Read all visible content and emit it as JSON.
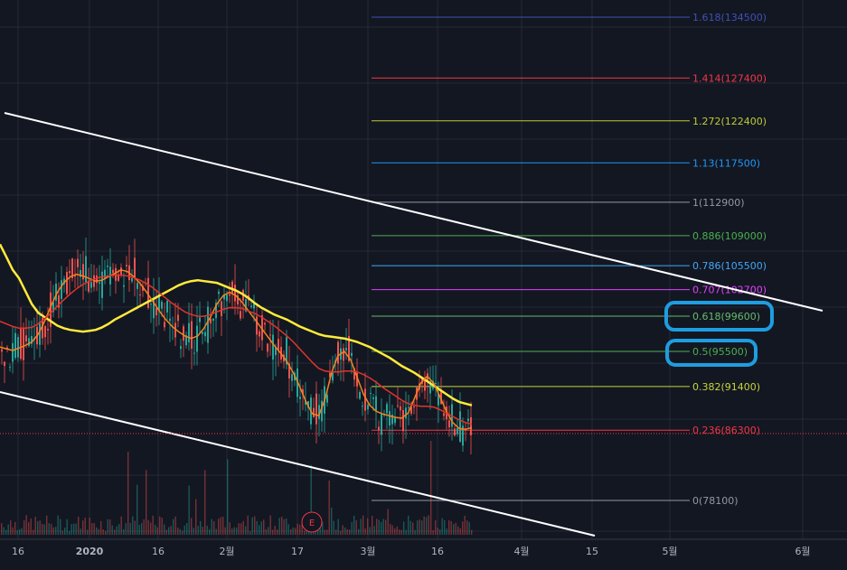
{
  "chart_data": {
    "type": "line",
    "title": "",
    "x_ticks": [
      "16",
      "2020",
      "16",
      "2월",
      "17",
      "3월",
      "16",
      "4월",
      "15",
      "5월",
      "6월"
    ],
    "fib_levels": [
      {
        "ratio": "1.618",
        "price": 134500,
        "label": "1.618(134500)",
        "color": "#3f51b5"
      },
      {
        "ratio": "1.414",
        "price": 127400,
        "label": "1.414(127400)",
        "color": "#f23645"
      },
      {
        "ratio": "1.272",
        "price": 122400,
        "label": "1.272(122400)",
        "color": "#c0ca33"
      },
      {
        "ratio": "1.13",
        "price": 117500,
        "label": "1.13(117500)",
        "color": "#2196f3"
      },
      {
        "ratio": "1",
        "price": 112900,
        "label": "1(112900)",
        "color": "#9598a1"
      },
      {
        "ratio": "0.886",
        "price": 109000,
        "label": "0.886(109000)",
        "color": "#4caf50"
      },
      {
        "ratio": "0.786",
        "price": 105500,
        "label": "0.786(105500)",
        "color": "#42a5f5"
      },
      {
        "ratio": "0.707",
        "price": 102700,
        "label": "0.707(102700)",
        "color": "#e040fb"
      },
      {
        "ratio": "0.618",
        "price": 99600,
        "label": "0.618(99600)",
        "color": "#66bb6a"
      },
      {
        "ratio": "0.5",
        "price": 95500,
        "label": "0.5(95500)",
        "color": "#4caf50"
      },
      {
        "ratio": "0.382",
        "price": 91400,
        "label": "0.382(91400)",
        "color": "#c6d43a"
      },
      {
        "ratio": "0.236",
        "price": 86300,
        "label": "0.236(86300)",
        "color": "#f23645"
      },
      {
        "ratio": "0",
        "price": 78100,
        "label": "0(78100)",
        "color": "#9598a1"
      }
    ],
    "current_price": 85900,
    "moving_averages": [
      {
        "color": "#ffeb3b",
        "values": [
          108000,
          106500,
          105000,
          104000,
          102500,
          101000,
          100000,
          99500,
          99000,
          98500,
          98200,
          98000,
          97900,
          97800,
          97900,
          98000,
          98300,
          98700,
          99200,
          99600,
          100000,
          100400,
          100800,
          101200,
          101600,
          102000,
          102400,
          102800,
          103200,
          103500,
          103700,
          103800,
          103700,
          103600,
          103500,
          103200,
          102900,
          102600,
          102200,
          101700,
          101100,
          100600,
          100200,
          99800,
          99500,
          99200,
          98800,
          98400,
          98100,
          97800,
          97500,
          97300,
          97200,
          97100,
          97000,
          96800,
          96600,
          96300,
          96000,
          95600,
          95200,
          94800,
          94300,
          93800,
          93400,
          93000,
          92500,
          92000,
          91500,
          91000,
          90500,
          90000,
          89600,
          89400,
          89200
        ]
      },
      {
        "color": "#f5831f",
        "values": [
          96000,
          95800,
          95600,
          95900,
          96200,
          96600,
          97500,
          99000,
          100800,
          102400,
          103500,
          104200,
          104500,
          104300,
          104000,
          103700,
          103800,
          104200,
          104600,
          105000,
          104800,
          104200,
          103400,
          102400,
          101300,
          100200,
          99200,
          98400,
          97800,
          97300,
          97000,
          97300,
          98200,
          99500,
          101000,
          102000,
          102400,
          102000,
          101200,
          100200,
          99200,
          98200,
          97200,
          96200,
          95300,
          94300,
          93000,
          91400,
          89600,
          88200,
          88000,
          90000,
          93000,
          95000,
          95500,
          94500,
          92500,
          90500,
          89200,
          88500,
          88200,
          88000,
          87800,
          87700,
          88300,
          90000,
          91800,
          92600,
          91800,
          90200,
          88500,
          87200,
          86500,
          86400,
          86600
        ]
      },
      {
        "color": "#e0342c",
        "values": [
          99000,
          98700,
          98400,
          98200,
          98200,
          98300,
          98700,
          99300,
          100000,
          100800,
          101500,
          102200,
          102800,
          103300,
          103700,
          104000,
          104200,
          104300,
          104400,
          104400,
          104300,
          104100,
          103800,
          103400,
          102900,
          102300,
          101700,
          101100,
          100600,
          100100,
          99800,
          99600,
          99600,
          99800,
          100100,
          100400,
          100600,
          100600,
          100500,
          100200,
          99900,
          99500,
          99000,
          98500,
          97900,
          97300,
          96600,
          95800,
          95000,
          94200,
          93500,
          93200,
          93100,
          93100,
          93200,
          93200,
          93100,
          92800,
          92400,
          91900,
          91300,
          90800,
          90300,
          89800,
          89400,
          89200,
          89100,
          89100,
          89000,
          88700,
          88300,
          87900,
          87500,
          87200,
          87000
        ]
      }
    ],
    "channel_lines": "descending"
  }
}
